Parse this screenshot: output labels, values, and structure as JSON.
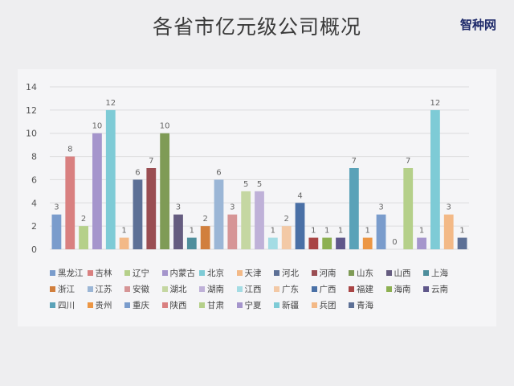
{
  "title": "各省市亿元级公司概况",
  "brand": "智种网",
  "chart_data": {
    "type": "bar",
    "title": "各省市亿元级公司概况",
    "ylim": [
      0,
      14
    ],
    "yticks": [
      0,
      2,
      4,
      6,
      8,
      10,
      12,
      14
    ],
    "grid": true,
    "legend_position": "bottom",
    "categories": [
      "黑龙江",
      "吉林",
      "辽宁",
      "内蒙古",
      "北京",
      "天津",
      "河北",
      "河南",
      "山东",
      "山西",
      "上海",
      "浙江",
      "江苏",
      "安徽",
      "湖北",
      "湖南",
      "江西",
      "广东",
      "广西",
      "福建",
      "海南",
      "云南",
      "四川",
      "贵州",
      "重庆",
      "陕西",
      "甘肃",
      "宁夏",
      "新疆",
      "兵团",
      "青海"
    ],
    "values": [
      3,
      8,
      2,
      10,
      12,
      1,
      6,
      7,
      10,
      3,
      1,
      2,
      6,
      3,
      5,
      5,
      1,
      2,
      4,
      1,
      1,
      1,
      7,
      1,
      3,
      0,
      7,
      1,
      12,
      3,
      1
    ],
    "colors": [
      "#7a9ccc",
      "#d98080",
      "#b5d08a",
      "#a595cc",
      "#7ecbd6",
      "#f3b987",
      "#5d7096",
      "#9a4d52",
      "#7f9b56",
      "#655c80",
      "#4e8e9c",
      "#d17f3d",
      "#9bb6d6",
      "#d69596",
      "#c5d7a2",
      "#bfb1d8",
      "#a4dce4",
      "#f3c9a6",
      "#4a70a6",
      "#a94545",
      "#8db052",
      "#5f578a",
      "#5aa2b8",
      "#ec9644"
    ]
  }
}
